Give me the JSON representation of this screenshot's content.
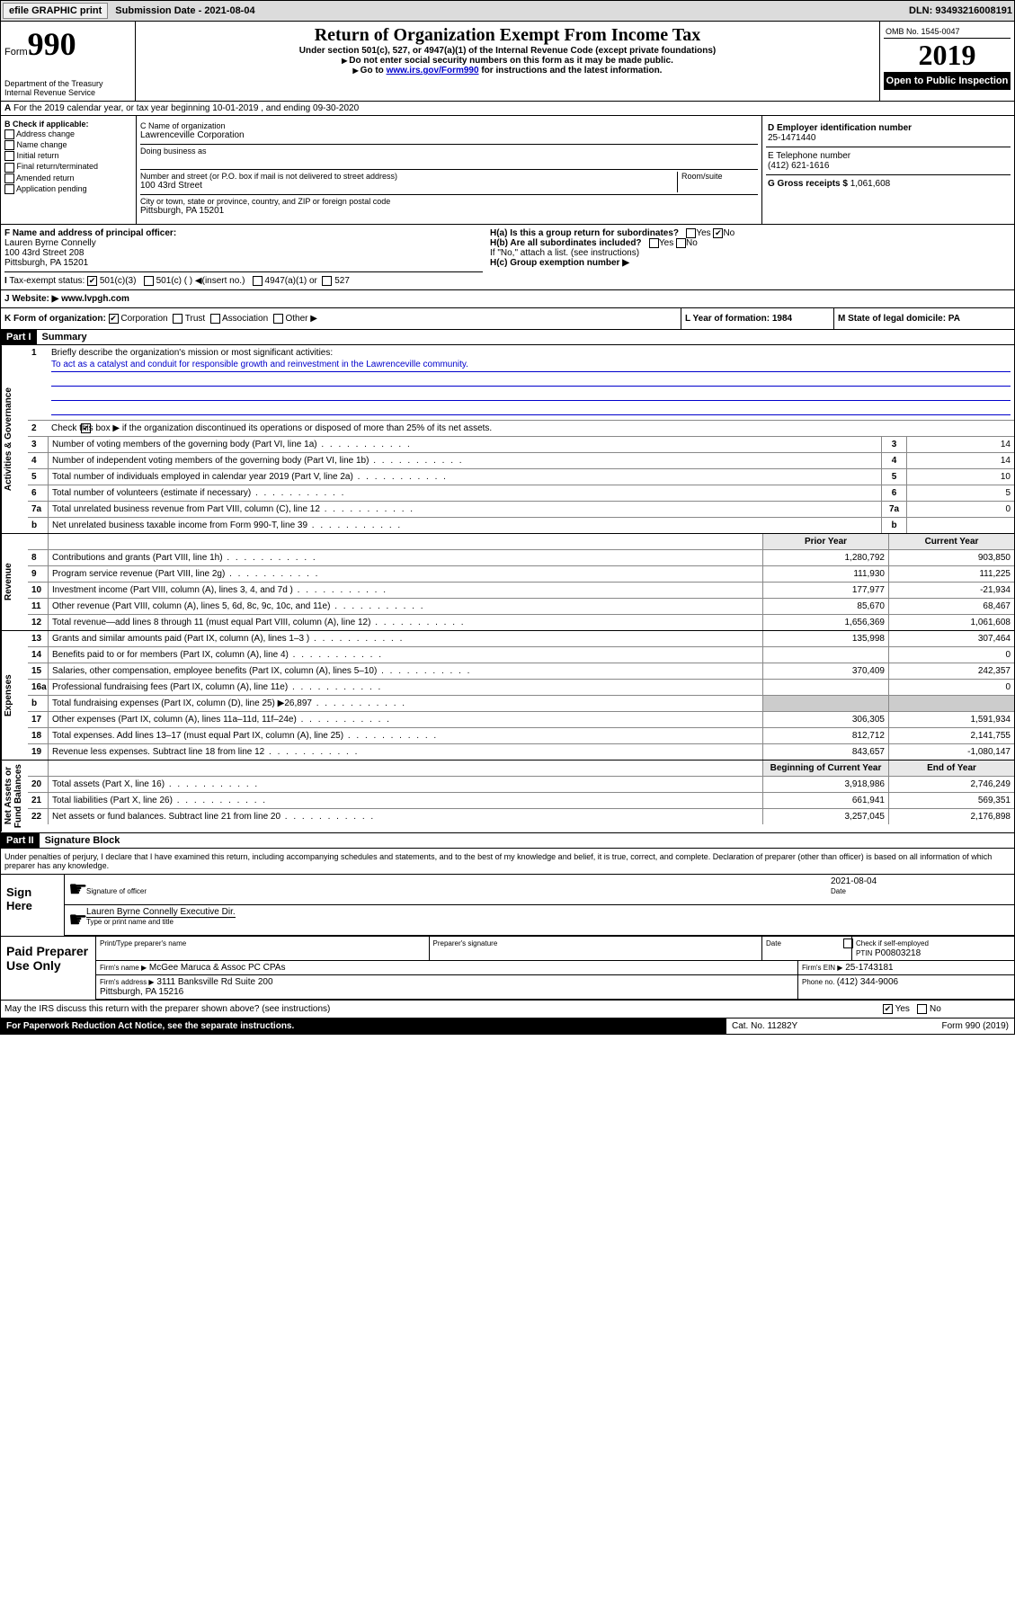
{
  "topbar": {
    "efile": "efile GRAPHIC print",
    "submission": "Submission Date - 2021-08-04",
    "dln": "DLN: 93493216008191"
  },
  "header": {
    "form": "Form",
    "form_num": "990",
    "dept": "Department of the Treasury\nInternal Revenue Service",
    "title": "Return of Organization Exempt From Income Tax",
    "sub1": "Under section 501(c), 527, or 4947(a)(1) of the Internal Revenue Code (except private foundations)",
    "sub2": "Do not enter social security numbers on this form as it may be made public.",
    "sub3_a": "Go to ",
    "sub3_link": "www.irs.gov/Form990",
    "sub3_b": " for instructions and the latest information.",
    "omb": "OMB No. 1545-0047",
    "year": "2019",
    "openpub": "Open to Public Inspection"
  },
  "rowA": {
    "text": "For the 2019 calendar year, or tax year beginning 10-01-2019     , and ending 09-30-2020",
    "prefix": "A"
  },
  "colB": {
    "label": "B Check if applicable:",
    "items": [
      "Address change",
      "Name change",
      "Initial return",
      "Final return/terminated",
      "Amended return",
      "Application pending"
    ]
  },
  "colC": {
    "name_lbl": "C Name of organization",
    "name": "Lawrenceville Corporation",
    "dba": "Doing business as",
    "addr_lbl": "Number and street (or P.O. box if mail is not delivered to street address)",
    "room": "Room/suite",
    "addr": "100 43rd Street",
    "city_lbl": "City or town, state or province, country, and ZIP or foreign postal code",
    "city": "Pittsburgh, PA  15201"
  },
  "colD": {
    "ein_lbl": "D Employer identification number",
    "ein": "25-1471440",
    "tel_lbl": "E Telephone number",
    "tel": "(412) 621-1616",
    "gross_lbl": "G Gross receipts $ ",
    "gross": "1,061,608"
  },
  "rowF": {
    "f_lbl": "F  Name and address of principal officer:",
    "f_name": "Lauren Byrne Connelly\n100 43rd Street 208\nPittsburgh, PA  15201",
    "ha": "H(a)  Is this a group return for subordinates?",
    "hb": "H(b)  Are all subordinates included?",
    "hb_note": "If \"No,\" attach a list. (see instructions)",
    "hc": "H(c)  Group exemption number ▶"
  },
  "rowI": {
    "label": "Tax-exempt status:",
    "opts": [
      "501(c)(3)",
      "501(c) (   ) ◀(insert no.)",
      "4947(a)(1) or",
      "527"
    ]
  },
  "rowJ": {
    "label": "J",
    "text": "Website: ▶",
    "url": "  www.lvpgh.com"
  },
  "rowK": {
    "k": "K Form of organization:",
    "opts": [
      "Corporation",
      "Trust",
      "Association",
      "Other ▶"
    ],
    "l": "L Year of formation: 1984",
    "m": "M State of legal domicile: PA"
  },
  "partI": {
    "hdr": "Part I",
    "title": "Summary"
  },
  "summary": {
    "gov_label": "Activities & Governance",
    "rev_label": "Revenue",
    "exp_label": "Expenses",
    "net_label": "Net Assets or\nFund Balances",
    "q1": "Briefly describe the organization's mission or most significant activities:",
    "mission": "To act as a catalyst and conduit for responsible growth and reinvestment in the Lawrenceville community.",
    "q2": "Check this box ▶       if the organization discontinued its operations or disposed of more than 25% of its net assets.",
    "rows3": [
      {
        "n": "3",
        "t": "Number of voting members of the governing body (Part VI, line 1a)",
        "v": "14"
      },
      {
        "n": "4",
        "t": "Number of independent voting members of the governing body (Part VI, line 1b)",
        "v": "14"
      },
      {
        "n": "5",
        "t": "Total number of individuals employed in calendar year 2019 (Part V, line 2a)",
        "v": "10"
      },
      {
        "n": "6",
        "t": "Total number of volunteers (estimate if necessary)",
        "v": "5"
      },
      {
        "n": "7a",
        "t": "Total unrelated business revenue from Part VIII, column (C), line 12",
        "v": "0"
      },
      {
        "n": "b",
        "t": "Net unrelated business taxable income from Form 990-T, line 39",
        "v": ""
      }
    ],
    "hdr_prior": "Prior Year",
    "hdr_curr": "Current Year",
    "rev": [
      {
        "n": "8",
        "t": "Contributions and grants (Part VIII, line 1h)",
        "p": "1,280,792",
        "c": "903,850"
      },
      {
        "n": "9",
        "t": "Program service revenue (Part VIII, line 2g)",
        "p": "111,930",
        "c": "111,225"
      },
      {
        "n": "10",
        "t": "Investment income (Part VIII, column (A), lines 3, 4, and 7d )",
        "p": "177,977",
        "c": "-21,934"
      },
      {
        "n": "11",
        "t": "Other revenue (Part VIII, column (A), lines 5, 6d, 8c, 9c, 10c, and 11e)",
        "p": "85,670",
        "c": "68,467"
      },
      {
        "n": "12",
        "t": "Total revenue—add lines 8 through 11 (must equal Part VIII, column (A), line 12)",
        "p": "1,656,369",
        "c": "1,061,608"
      }
    ],
    "exp": [
      {
        "n": "13",
        "t": "Grants and similar amounts paid (Part IX, column (A), lines 1–3 )",
        "p": "135,998",
        "c": "307,464"
      },
      {
        "n": "14",
        "t": "Benefits paid to or for members (Part IX, column (A), line 4)",
        "p": "",
        "c": "0"
      },
      {
        "n": "15",
        "t": "Salaries, other compensation, employee benefits (Part IX, column (A), lines 5–10)",
        "p": "370,409",
        "c": "242,357"
      },
      {
        "n": "16a",
        "t": "Professional fundraising fees (Part IX, column (A), line 11e)",
        "p": "",
        "c": "0"
      },
      {
        "n": "b",
        "t": "Total fundraising expenses (Part IX, column (D), line 25) ▶26,897",
        "p": "GRAY",
        "c": "GRAY"
      },
      {
        "n": "17",
        "t": "Other expenses (Part IX, column (A), lines 11a–11d, 11f–24e)",
        "p": "306,305",
        "c": "1,591,934"
      },
      {
        "n": "18",
        "t": "Total expenses. Add lines 13–17 (must equal Part IX, column (A), line 25)",
        "p": "812,712",
        "c": "2,141,755"
      },
      {
        "n": "19",
        "t": "Revenue less expenses. Subtract line 18 from line 12",
        "p": "843,657",
        "c": "-1,080,147"
      }
    ],
    "hdr_beg": "Beginning of Current Year",
    "hdr_end": "End of Year",
    "net": [
      {
        "n": "20",
        "t": "Total assets (Part X, line 16)",
        "p": "3,918,986",
        "c": "2,746,249"
      },
      {
        "n": "21",
        "t": "Total liabilities (Part X, line 26)",
        "p": "661,941",
        "c": "569,351"
      },
      {
        "n": "22",
        "t": "Net assets or fund balances. Subtract line 21 from line 20",
        "p": "3,257,045",
        "c": "2,176,898"
      }
    ]
  },
  "partII": {
    "hdr": "Part II",
    "title": "Signature Block"
  },
  "sig": {
    "note": "Under penalties of perjury, I declare that I have examined this return, including accompanying schedules and statements, and to the best of my knowledge and belief, it is true, correct, and complete. Declaration of preparer (other than officer) is based on all information of which preparer has any knowledge.",
    "sign_here": "Sign Here",
    "sig_officer": "Signature of officer",
    "date": "2021-08-04",
    "date_lbl": "Date",
    "name": "Lauren Byrne Connelly  Executive Dir.",
    "name_lbl": "Type or print name and title",
    "paid": "Paid Preparer Use Only",
    "prep_name_lbl": "Print/Type preparer's name",
    "prep_sig_lbl": "Preparer's signature",
    "check_self": "Check        if self-employed",
    "ptin_lbl": "PTIN",
    "ptin": "P00803218",
    "firm_name_lbl": "Firm's name      ▶",
    "firm_name": "McGee Maruca & Assoc PC CPAs",
    "firm_ein_lbl": "Firm's EIN ▶",
    "firm_ein": "25-1743181",
    "firm_addr_lbl": "Firm's address ▶",
    "firm_addr": "3111 Banksville Rd Suite 200\nPittsburgh, PA  15216",
    "phone_lbl": "Phone no. ",
    "phone": "(412) 344-9006",
    "discuss": "May the IRS discuss this return with the preparer shown above? (see instructions)"
  },
  "footer": {
    "pra": "For Paperwork Reduction Act Notice, see the separate instructions.",
    "cat": "Cat. No. 11282Y",
    "form": "Form 990 (2019)"
  }
}
